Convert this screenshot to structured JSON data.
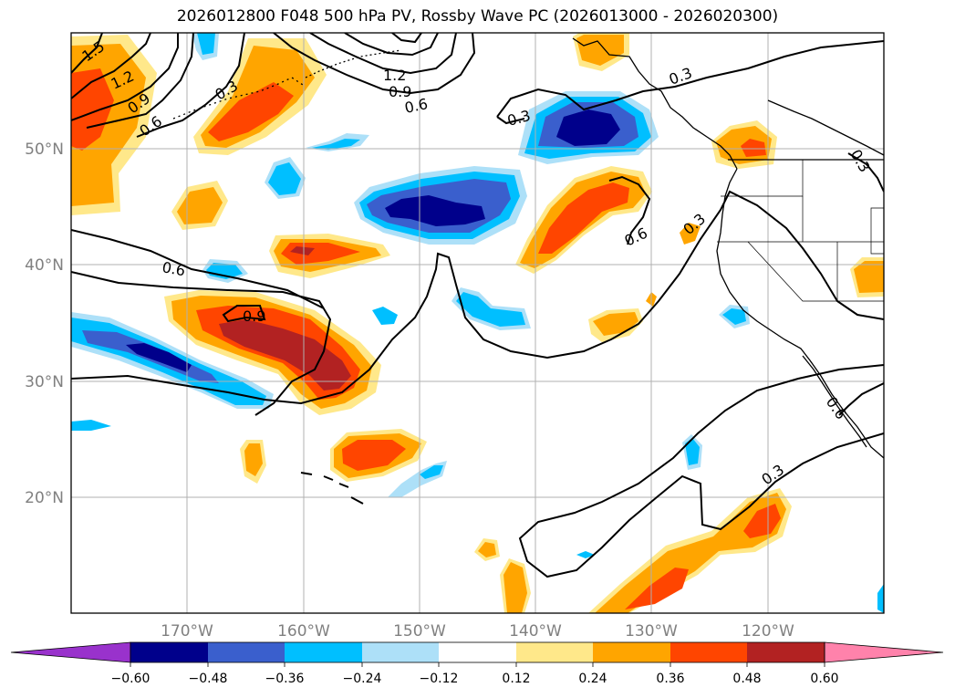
{
  "title": "2026012800 F048 500 hPa PV, Rossby Wave PC (2026013000 - 2026020300)",
  "lon_labels": [
    "170°W",
    "160°W",
    "150°W",
    "140°W",
    "130°W",
    "120°W"
  ],
  "lat_labels": [
    "50°N",
    "40°N",
    "30°N",
    "20°N"
  ],
  "contour_labels": [
    "1.5",
    "1.2",
    "0.9",
    "0.6",
    "0.3",
    "1.2",
    "0.9",
    "0.6",
    "0.3",
    "0.3",
    "0.6",
    "0.9",
    "0.6",
    "0.3",
    "0.3",
    "0.3",
    "0.6"
  ],
  "colorbar": {
    "tick_labels": [
      "−0.60",
      "−0.48",
      "−0.36",
      "−0.24",
      "−0.12",
      "0.12",
      "0.24",
      "0.36",
      "0.48",
      "0.60"
    ],
    "colors": [
      "#9932CC",
      "#00008B",
      "#3A5FCD",
      "#00BFFF",
      "#ADE0F8",
      "#FFFFFF",
      "#FFE88A",
      "#FFA500",
      "#FF4500",
      "#B22222",
      "#FF82AB"
    ]
  },
  "colors": {
    "neg1": "#ADE0F8",
    "neg2": "#00BFFF",
    "neg3": "#3A5FCD",
    "neg4": "#00008B",
    "pos1": "#FFE88A",
    "pos2": "#FFA500",
    "pos3": "#FF4500",
    "pos4": "#B22222"
  }
}
